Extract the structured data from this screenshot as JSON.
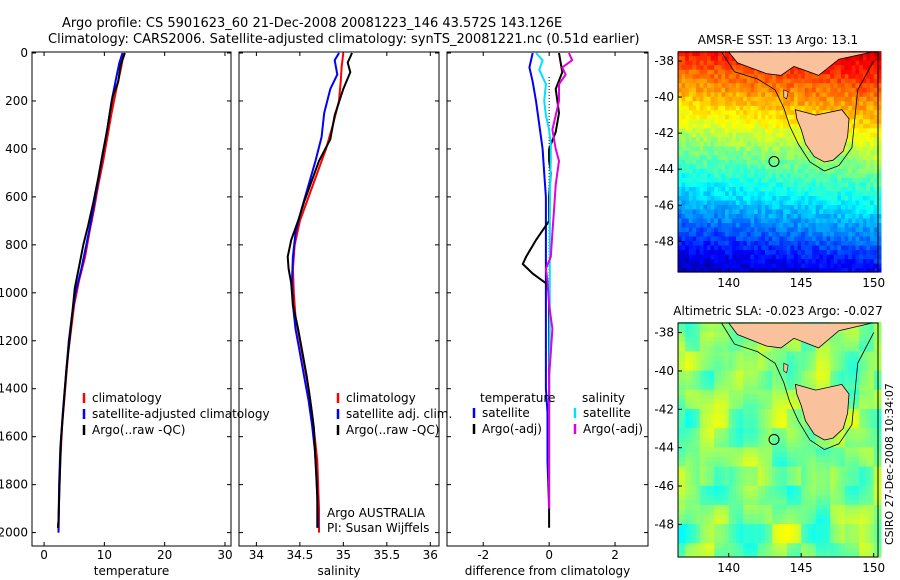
{
  "header": {
    "line1": "Argo profile: CS 5901623_60 21-Dec-2008 20081223_146 43.572S 143.126E",
    "line2": "Climatology: CARS2006. Satellite-adjusted climatology: synTS_20081221.nc (0.51d earlier)"
  },
  "side_label": "CSIRO 27-Dec-2008 10:34:07",
  "colors": {
    "climatology": "#ff0000",
    "satellite": "#0000ff",
    "argo": "#000000",
    "sat_salinity": "#00e0ff",
    "argo_salinity": "#e000e0"
  },
  "chart_data": [
    {
      "type": "line",
      "panel": "temperature",
      "xlabel": "temperature",
      "ylabel": "",
      "xlim": [
        -2,
        31
      ],
      "ylim": [
        2050,
        0
      ],
      "y_reversed": true,
      "xticks": [
        0,
        10,
        20,
        30
      ],
      "yticks": [
        0,
        200,
        400,
        600,
        800,
        1000,
        1200,
        1400,
        1600,
        1800,
        2000
      ],
      "legend": [
        "climatology",
        "satellite-adjusted climatology",
        "Argo(..raw -QC)"
      ],
      "legend_position": "lower-middle",
      "series": [
        {
          "name": "climatology",
          "color": "climatology",
          "points": [
            [
              13.2,
              0
            ],
            [
              12.8,
              60
            ],
            [
              12.0,
              150
            ],
            [
              11.2,
              250
            ],
            [
              10.5,
              350
            ],
            [
              9.8,
              450
            ],
            [
              9.0,
              550
            ],
            [
              8.3,
              650
            ],
            [
              7.5,
              750
            ],
            [
              6.8,
              850
            ],
            [
              5.8,
              950
            ],
            [
              5.0,
              1050
            ],
            [
              4.5,
              1150
            ],
            [
              4.0,
              1250
            ],
            [
              3.5,
              1400
            ],
            [
              3.0,
              1550
            ],
            [
              2.7,
              1700
            ],
            [
              2.5,
              1850
            ],
            [
              2.4,
              2000
            ]
          ]
        },
        {
          "name": "satellite-adjusted climatology",
          "color": "satellite",
          "points": [
            [
              13.0,
              0
            ],
            [
              12.5,
              40
            ],
            [
              12.0,
              100
            ],
            [
              11.2,
              200
            ],
            [
              10.6,
              300
            ],
            [
              9.9,
              400
            ],
            [
              9.2,
              500
            ],
            [
              8.5,
              600
            ],
            [
              7.8,
              700
            ],
            [
              7.0,
              800
            ],
            [
              6.2,
              900
            ],
            [
              5.2,
              1000
            ],
            [
              4.6,
              1100
            ],
            [
              4.1,
              1200
            ],
            [
              3.6,
              1350
            ],
            [
              3.1,
              1500
            ],
            [
              2.7,
              1650
            ],
            [
              2.5,
              1800
            ],
            [
              2.4,
              2000
            ]
          ]
        },
        {
          "name": "Argo(..raw -QC)",
          "color": "argo",
          "points": [
            [
              13.4,
              0
            ],
            [
              12.7,
              50
            ],
            [
              12.3,
              120
            ],
            [
              11.4,
              180
            ],
            [
              10.9,
              250
            ],
            [
              10.4,
              330
            ],
            [
              9.7,
              420
            ],
            [
              9.0,
              520
            ],
            [
              8.2,
              620
            ],
            [
              7.3,
              720
            ],
            [
              6.5,
              800
            ],
            [
              5.9,
              880
            ],
            [
              5.1,
              980
            ],
            [
              4.7,
              1080
            ],
            [
              4.2,
              1200
            ],
            [
              3.7,
              1320
            ],
            [
              3.2,
              1480
            ],
            [
              2.8,
              1620
            ],
            [
              2.6,
              1780
            ],
            [
              2.4,
              1950
            ],
            [
              2.3,
              1980
            ]
          ]
        }
      ]
    },
    {
      "type": "line",
      "panel": "salinity",
      "xlabel": "salinity",
      "ylabel": "",
      "xlim": [
        33.8,
        36.1
      ],
      "ylim": [
        2050,
        0
      ],
      "y_reversed": true,
      "xticks": [
        34,
        34.5,
        35,
        35.5,
        36
      ],
      "legend": [
        "climatology",
        "satellite adj. clim.",
        "Argo(..raw -QC)"
      ],
      "legend_position": "lower-right",
      "annotation": [
        "Argo AUSTRALIA",
        "PI: Susan Wijffels"
      ],
      "series": [
        {
          "name": "climatology",
          "color": "climatology",
          "points": [
            [
              35.0,
              0
            ],
            [
              34.98,
              60
            ],
            [
              34.97,
              120
            ],
            [
              34.95,
              200
            ],
            [
              34.88,
              300
            ],
            [
              34.8,
              400
            ],
            [
              34.7,
              500
            ],
            [
              34.6,
              600
            ],
            [
              34.5,
              700
            ],
            [
              34.44,
              800
            ],
            [
              34.42,
              900
            ],
            [
              34.43,
              1000
            ],
            [
              34.45,
              1100
            ],
            [
              34.5,
              1200
            ],
            [
              34.55,
              1300
            ],
            [
              34.6,
              1400
            ],
            [
              34.64,
              1500
            ],
            [
              34.67,
              1600
            ],
            [
              34.7,
              1700
            ],
            [
              34.71,
              1800
            ],
            [
              34.72,
              1900
            ],
            [
              34.72,
              2000
            ]
          ]
        },
        {
          "name": "satellite adj. clim.",
          "color": "satellite",
          "points": [
            [
              34.95,
              0
            ],
            [
              34.9,
              30
            ],
            [
              34.93,
              90
            ],
            [
              34.85,
              150
            ],
            [
              34.78,
              250
            ],
            [
              34.75,
              350
            ],
            [
              34.68,
              450
            ],
            [
              34.6,
              550
            ],
            [
              34.52,
              650
            ],
            [
              34.45,
              750
            ],
            [
              34.42,
              850
            ],
            [
              34.41,
              950
            ],
            [
              34.42,
              1050
            ],
            [
              34.45,
              1150
            ],
            [
              34.5,
              1250
            ],
            [
              34.55,
              1350
            ],
            [
              34.6,
              1450
            ],
            [
              34.64,
              1550
            ],
            [
              34.67,
              1650
            ],
            [
              34.69,
              1750
            ],
            [
              34.7,
              1850
            ],
            [
              34.71,
              1980
            ]
          ]
        },
        {
          "name": "Argo(..raw -QC)",
          "color": "argo",
          "points": [
            [
              35.1,
              0
            ],
            [
              35.05,
              40
            ],
            [
              35.08,
              80
            ],
            [
              35.0,
              150
            ],
            [
              34.9,
              260
            ],
            [
              34.85,
              360
            ],
            [
              34.72,
              450
            ],
            [
              34.65,
              520
            ],
            [
              34.55,
              620
            ],
            [
              34.48,
              700
            ],
            [
              34.4,
              780
            ],
            [
              34.36,
              850
            ],
            [
              34.37,
              900
            ],
            [
              34.4,
              960
            ],
            [
              34.42,
              1050
            ],
            [
              34.48,
              1150
            ],
            [
              34.53,
              1250
            ],
            [
              34.58,
              1350
            ],
            [
              34.62,
              1450
            ],
            [
              34.66,
              1560
            ],
            [
              34.68,
              1700
            ],
            [
              34.7,
              1850
            ],
            [
              34.7,
              1980
            ]
          ]
        }
      ]
    },
    {
      "type": "line",
      "panel": "difference",
      "xlabel": "difference from climatology",
      "ylabel": "",
      "xlim": [
        -3.1,
        3.0
      ],
      "ylim": [
        2050,
        0
      ],
      "y_reversed": true,
      "xticks": [
        -2,
        0,
        2
      ],
      "legend_groups": [
        {
          "title": "temperature",
          "items": [
            "satellite",
            "Argo(-adj)"
          ]
        },
        {
          "title": "salinity",
          "items": [
            "satellite",
            "Argo(-adj)"
          ]
        }
      ],
      "legend_position": "lower-middle",
      "series": [
        {
          "name": "temperature satellite",
          "color": "satellite",
          "points": [
            [
              -0.5,
              0
            ],
            [
              -0.6,
              60
            ],
            [
              -0.5,
              120
            ],
            [
              -0.4,
              200
            ],
            [
              -0.3,
              300
            ],
            [
              -0.2,
              400
            ],
            [
              -0.15,
              500
            ],
            [
              -0.1,
              600
            ],
            [
              -0.1,
              700
            ],
            [
              -0.1,
              800
            ],
            [
              -0.1,
              900
            ],
            [
              -0.1,
              1000
            ],
            [
              -0.1,
              1100
            ],
            [
              -0.1,
              1200
            ],
            [
              -0.1,
              1300
            ],
            [
              -0.1,
              1400
            ],
            [
              -0.05,
              1500
            ],
            [
              -0.05,
              1700
            ],
            [
              0.0,
              1900
            ]
          ]
        },
        {
          "name": "temperature Argo(-adj)",
          "color": "argo",
          "points": [
            [
              0.3,
              0
            ],
            [
              0.4,
              80
            ],
            [
              0.2,
              150
            ],
            [
              0.3,
              250
            ],
            [
              0.2,
              330
            ],
            [
              0.0,
              400
            ],
            [
              0.0,
              450
            ],
            [
              0.05,
              500
            ],
            [
              0.0,
              600
            ],
            [
              0.0,
              700
            ],
            [
              -0.4,
              780
            ],
            [
              -0.7,
              850
            ],
            [
              -0.8,
              880
            ],
            [
              -0.5,
              920
            ],
            [
              -0.1,
              960
            ],
            [
              0.0,
              1000
            ],
            [
              0.0,
              1100
            ],
            [
              0.0,
              1200
            ],
            [
              0.0,
              1300
            ],
            [
              0.0,
              1400
            ],
            [
              0.0,
              1500
            ],
            [
              0.0,
              1600
            ],
            [
              0.0,
              1800
            ],
            [
              0.0,
              1980
            ]
          ]
        },
        {
          "name": "salinity satellite",
          "color": "sat_salinity",
          "points": [
            [
              -0.4,
              0
            ],
            [
              -0.2,
              30
            ],
            [
              -0.3,
              70
            ],
            [
              -0.1,
              130
            ],
            [
              -0.15,
              200
            ],
            [
              -0.1,
              260
            ],
            [
              0.0,
              320
            ],
            [
              0.05,
              380
            ],
            [
              0.05,
              450
            ],
            [
              0.03,
              550
            ],
            [
              0.02,
              700
            ],
            [
              0.02,
              900
            ],
            [
              0.02,
              1100
            ],
            [
              0.01,
              1300
            ],
            [
              0.0,
              1500
            ],
            [
              0.0,
              1800
            ]
          ]
        },
        {
          "name": "salinity Argo(-adj)",
          "color": "argo_salinity",
          "points": [
            [
              0.6,
              0
            ],
            [
              0.7,
              30
            ],
            [
              0.4,
              60
            ],
            [
              0.5,
              90
            ],
            [
              0.3,
              130
            ],
            [
              0.3,
              200
            ],
            [
              0.2,
              260
            ],
            [
              0.1,
              320
            ],
            [
              0.2,
              400
            ],
            [
              0.3,
              450
            ],
            [
              0.2,
              550
            ],
            [
              0.15,
              650
            ],
            [
              0.1,
              750
            ],
            [
              0.05,
              850
            ],
            [
              -0.1,
              900
            ],
            [
              -0.05,
              950
            ],
            [
              0.0,
              1050
            ],
            [
              0.1,
              1150
            ],
            [
              0.05,
              1250
            ],
            [
              0.0,
              1350
            ],
            [
              0.0,
              1500
            ],
            [
              0.0,
              1700
            ],
            [
              0.0,
              1900
            ]
          ]
        }
      ]
    },
    {
      "type": "heatmap",
      "panel": "sst-map",
      "title": "AMSR-E SST: 13 Argo: 13.1",
      "xlim": [
        136.5,
        150.3
      ],
      "ylim": [
        -49.7,
        -37.5
      ],
      "xticks": [
        140,
        145,
        150
      ],
      "yticks": [
        -38,
        -40,
        -42,
        -44,
        -46,
        -48
      ],
      "argo_position": [
        143.126,
        -43.572
      ],
      "colormap": "jet"
    },
    {
      "type": "heatmap",
      "panel": "sla-map",
      "title": "Altimetric SLA: -0.023 Argo: -0.027",
      "xlim": [
        136.5,
        150.3
      ],
      "ylim": [
        -49.7,
        -37.5
      ],
      "xticks": [
        140,
        145,
        150
      ],
      "yticks": [
        -38,
        -40,
        -42,
        -44,
        -46,
        -48
      ],
      "argo_position": [
        143.126,
        -43.572
      ],
      "colormap": "jet"
    }
  ]
}
